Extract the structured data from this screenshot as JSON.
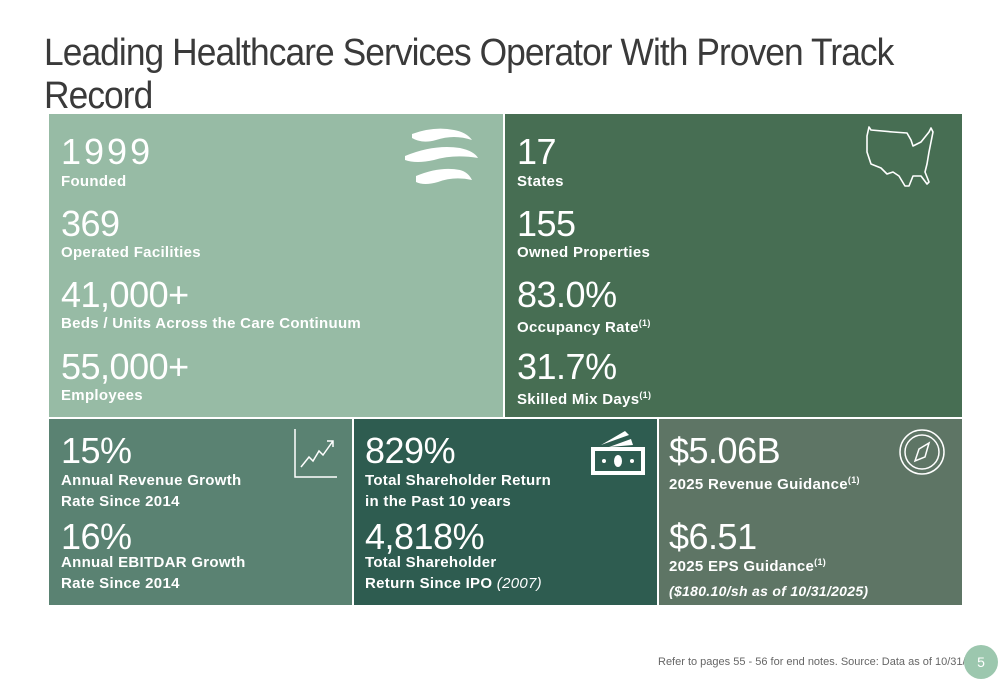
{
  "title": "Leading Healthcare Services Operator With Proven Track Record",
  "top_left": {
    "stats": [
      {
        "value": "1999",
        "label": "Founded"
      },
      {
        "value": "369",
        "label": "Operated Facilities"
      },
      {
        "value": "41,000+",
        "label": "Beds / Units Across the Care Continuum"
      },
      {
        "value": "55,000+",
        "label": "Employees"
      }
    ],
    "icon": "wave-logo-icon"
  },
  "top_right": {
    "stats": [
      {
        "value": "17",
        "label": "States"
      },
      {
        "value": "155",
        "label": "Owned Properties"
      },
      {
        "value": "83.0%",
        "label": "Occupancy Rate",
        "note": "(1)"
      },
      {
        "value": "31.7%",
        "label": "Skilled Mix Days",
        "note": "(1)"
      }
    ],
    "icon": "us-map-icon"
  },
  "bottom_left": {
    "stats": [
      {
        "value": "15%",
        "label1": "Annual Revenue Growth",
        "label2": "Rate Since 2014"
      },
      {
        "value": "16%",
        "label1": "Annual EBITDAR Growth",
        "label2": "Rate Since 2014"
      }
    ],
    "icon": "growth-chart-icon"
  },
  "bottom_mid": {
    "stats": [
      {
        "value": "829%",
        "label1": "Total Shareholder Return",
        "label2": "in the Past 10 years"
      },
      {
        "value": "4,818%",
        "label1": "Total Shareholder",
        "label2": "Return Since IPO",
        "italic": "(2007)"
      }
    ],
    "icon": "money-icon"
  },
  "bottom_right": {
    "stats": [
      {
        "value": "$5.06B",
        "label": "2025 Revenue Guidance",
        "note": "(1)"
      },
      {
        "value": "$6.51",
        "label": "2025 EPS Guidance",
        "note": "(1)",
        "sub": "($180.10/sh as of 10/31/2025)"
      }
    ],
    "icon": "compass-icon"
  },
  "footer": {
    "note": "Refer to pages 55 - 56 for end notes. Source: Data as of 10/31/2025.",
    "page": "5"
  },
  "colors": {
    "top_left": "#97bba5",
    "top_right": "#476e53",
    "bottom_left": "#5a8272",
    "bottom_mid": "#2e5c50",
    "bottom_right": "#5e7565"
  }
}
